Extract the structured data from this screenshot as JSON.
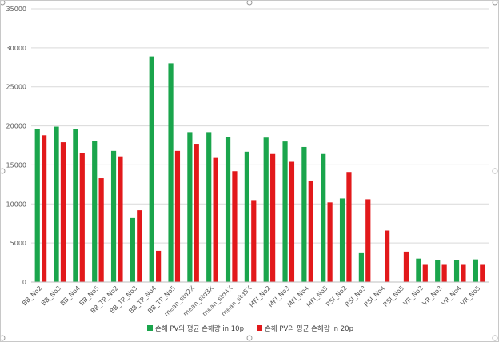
{
  "chart_data": {
    "type": "bar",
    "categories": [
      "BB_No2",
      "BB_No3",
      "BB_No4",
      "BB_No5",
      "BB_TP_No2",
      "BB_TP_No3",
      "BB_TP_No4",
      "BB_TP_No5",
      "mean_std2X",
      "mean_std3X",
      "mean_std4X",
      "mean_std5X",
      "MFI_No2",
      "MFI_No3",
      "MFI_No4",
      "MFI_No5",
      "RSI_No2",
      "RSI_No3",
      "RSI_No4",
      "RSI_No5",
      "VR_No2",
      "VR_No3",
      "VR_No4",
      "VR_No5"
    ],
    "series": [
      {
        "name": "손해 PV의 평균 손해량 in 10p",
        "color": "#1aa54c",
        "values": [
          19600,
          19900,
          19600,
          18100,
          16800,
          8200,
          28900,
          28000,
          19200,
          19200,
          18600,
          16700,
          18500,
          18000,
          17300,
          16400,
          10700,
          3800,
          0,
          0,
          3000,
          2800,
          2800,
          2900
        ]
      },
      {
        "name": "손해 PV의 평균 손해량 in 20p",
        "color": "#e2191b",
        "values": [
          18800,
          17900,
          16500,
          13300,
          16100,
          9200,
          4000,
          16800,
          17700,
          15900,
          14200,
          10500,
          16400,
          15400,
          13000,
          10200,
          14100,
          10600,
          6600,
          3900,
          2200,
          2200,
          2200,
          2200
        ]
      }
    ],
    "ylim": [
      0,
      35000
    ],
    "yticks": [
      0,
      5000,
      10000,
      15000,
      20000,
      25000,
      30000,
      35000
    ],
    "grid": true,
    "legend": "bottom",
    "title": "",
    "xlabel": "",
    "ylabel": ""
  }
}
